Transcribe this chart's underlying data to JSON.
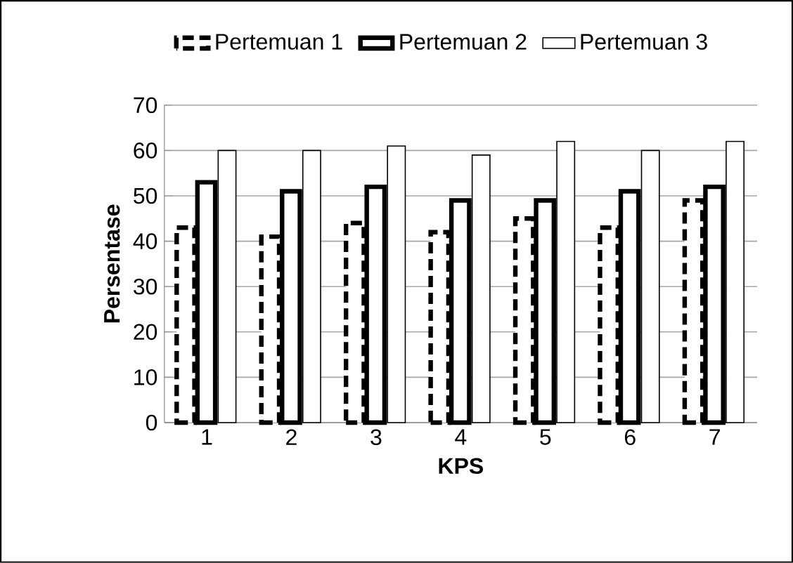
{
  "chart_data": {
    "type": "bar",
    "xlabel": "KPS",
    "ylabel": "Persentase",
    "categories": [
      "1",
      "2",
      "3",
      "4",
      "5",
      "6",
      "7"
    ],
    "series": [
      {
        "name": "Pertemuan 1",
        "color": "#ffffff",
        "line_style": "dashed",
        "values": [
          43,
          41,
          44,
          42,
          45,
          43,
          49
        ]
      },
      {
        "name": "Pertemuan 2",
        "color": "#ffffff",
        "line_style": "solid",
        "values": [
          53,
          51,
          52,
          49,
          49,
          51,
          52
        ]
      },
      {
        "name": "Pertemuan 3",
        "color": "#ffffff",
        "line_style": "solid",
        "values": [
          60,
          60,
          61,
          59,
          62,
          60,
          62
        ]
      }
    ],
    "ylim": [
      0,
      70
    ],
    "yticks": [
      0,
      10,
      20,
      30,
      40,
      50,
      60,
      70
    ],
    "grid": "y",
    "legend": "top"
  }
}
